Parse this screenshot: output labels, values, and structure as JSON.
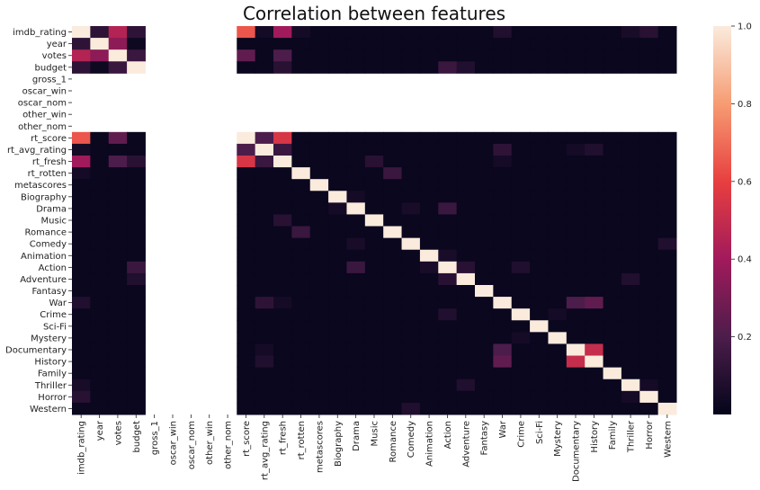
{
  "chart_data": {
    "type": "heatmap",
    "title": "Correlation between features",
    "labels": [
      "imdb_rating",
      "year",
      "votes",
      "budget",
      "gross_1",
      "oscar_win",
      "oscar_nom",
      "other_win",
      "other_nom",
      "rt_score",
      "rt_avg_rating",
      "rt_fresh",
      "rt_rotten",
      "metascores",
      "Biography",
      "Drama",
      "Music",
      "Romance",
      "Comedy",
      "Animation",
      "Action",
      "Adventure",
      "Fantasy",
      "War",
      "Crime",
      "Sci-Fi",
      "Mystery",
      "Documentary",
      "History",
      "Family",
      "Thriller",
      "Horror",
      "Western"
    ],
    "empty_features": [
      "gross_1",
      "oscar_win",
      "oscar_nom",
      "other_win",
      "other_nom"
    ],
    "baseline": 0.02,
    "pairs": [
      [
        "imdb_rating",
        "year",
        0.12
      ],
      [
        "imdb_rating",
        "votes",
        0.45
      ],
      [
        "imdb_rating",
        "budget",
        0.12
      ],
      [
        "imdb_rating",
        "rt_score",
        0.65
      ],
      [
        "imdb_rating",
        "rt_avg_rating",
        0.05
      ],
      [
        "imdb_rating",
        "rt_fresh",
        0.4
      ],
      [
        "imdb_rating",
        "rt_rotten",
        0.05
      ],
      [
        "imdb_rating",
        "War",
        0.08
      ],
      [
        "imdb_rating",
        "Thriller",
        0.06
      ],
      [
        "imdb_rating",
        "Horror",
        0.1
      ],
      [
        "year",
        "votes",
        0.35
      ],
      [
        "year",
        "budget",
        0.03
      ],
      [
        "votes",
        "budget",
        0.15
      ],
      [
        "votes",
        "rt_score",
        0.25
      ],
      [
        "votes",
        "rt_fresh",
        0.2
      ],
      [
        "budget",
        "rt_fresh",
        0.1
      ],
      [
        "budget",
        "Action",
        0.15
      ],
      [
        "budget",
        "Adventure",
        0.08
      ],
      [
        "rt_score",
        "rt_avg_rating",
        0.2
      ],
      [
        "rt_score",
        "rt_fresh",
        0.55
      ],
      [
        "rt_avg_rating",
        "rt_fresh",
        0.15
      ],
      [
        "rt_avg_rating",
        "War",
        0.12
      ],
      [
        "rt_avg_rating",
        "Documentary",
        0.05
      ],
      [
        "rt_avg_rating",
        "History",
        0.08
      ],
      [
        "rt_fresh",
        "Music",
        0.1
      ],
      [
        "rt_fresh",
        "War",
        0.05
      ],
      [
        "rt_rotten",
        "Romance",
        0.15
      ],
      [
        "Drama",
        "Action",
        0.15
      ],
      [
        "Drama",
        "Comedy",
        0.06
      ],
      [
        "Drama",
        "Biography",
        0.05
      ],
      [
        "Comedy",
        "Western",
        0.08
      ],
      [
        "Action",
        "Adventure",
        0.1
      ],
      [
        "Action",
        "Crime",
        0.08
      ],
      [
        "Action",
        "Animation",
        0.06
      ],
      [
        "Adventure",
        "Thriller",
        0.08
      ],
      [
        "War",
        "Documentary",
        0.2
      ],
      [
        "War",
        "History",
        0.25
      ],
      [
        "Documentary",
        "History",
        0.5
      ],
      [
        "Thriller",
        "Horror",
        0.05
      ],
      [
        "Crime",
        "Mystery",
        0.05
      ]
    ],
    "colorbar": {
      "min": 0.0,
      "max": 1.0,
      "ticks": [
        0.2,
        0.4,
        0.6,
        0.8,
        1.0
      ],
      "tick_labels": [
        "0.2",
        "0.4",
        "0.6",
        "0.8",
        "1.0"
      ]
    },
    "colormap": "rocket",
    "colormap_stops": [
      "#03051a",
      "#4c1d4b",
      "#a11a5b",
      "#e83f3f",
      "#f69c73",
      "#faebdd"
    ]
  }
}
